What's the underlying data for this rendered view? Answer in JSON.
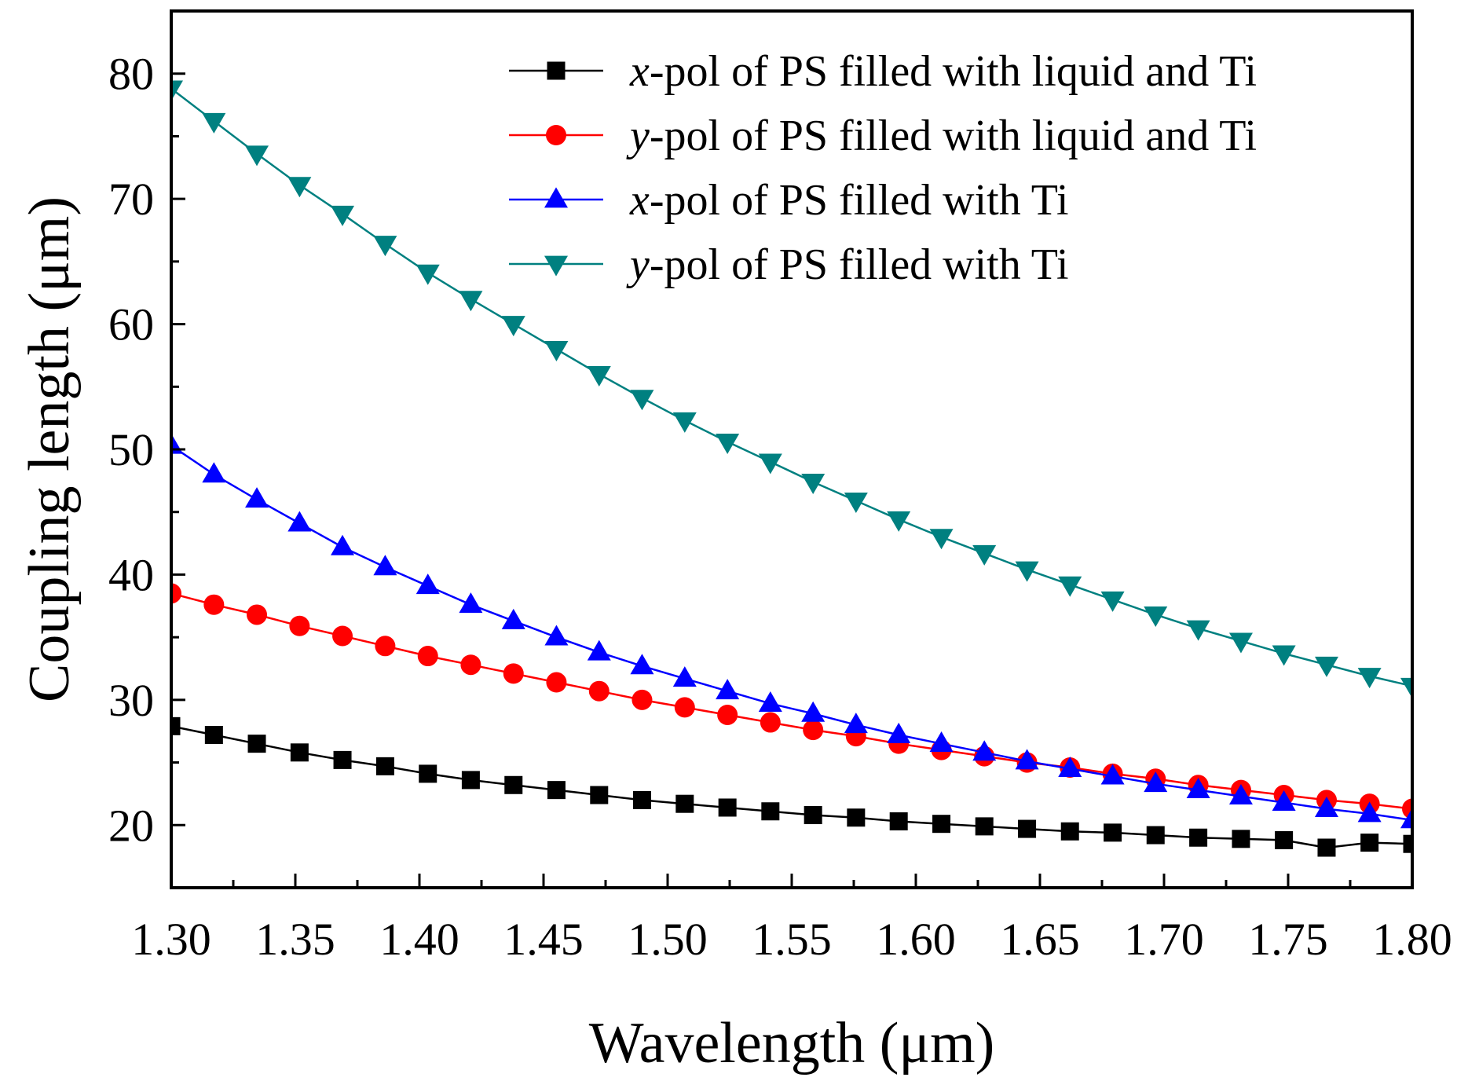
{
  "chart_data": {
    "type": "line",
    "xlabel": "Wavelength (μm)",
    "ylabel": "Coupling length (μm)",
    "xlim": [
      1.3,
      1.8
    ],
    "ylim": [
      15,
      85
    ],
    "xticks": [
      1.3,
      1.35,
      1.4,
      1.45,
      1.5,
      1.55,
      1.6,
      1.65,
      1.7,
      1.75,
      1.8
    ],
    "xtick_labels": [
      "1.30",
      "1.35",
      "1.40",
      "1.45",
      "1.50",
      "1.55",
      "1.60",
      "1.65",
      "1.70",
      "1.75",
      "1.80"
    ],
    "yticks": [
      20,
      30,
      40,
      50,
      60,
      70,
      80
    ],
    "ytick_labels": [
      "20",
      "30",
      "40",
      "50",
      "60",
      "70",
      "80"
    ],
    "legend_position": "top-right",
    "x": [
      1.3,
      1.3172,
      1.3345,
      1.3517,
      1.369,
      1.3862,
      1.4034,
      1.4207,
      1.4379,
      1.4552,
      1.4724,
      1.4897,
      1.5069,
      1.5241,
      1.5414,
      1.5586,
      1.5759,
      1.5931,
      1.6103,
      1.6276,
      1.6448,
      1.6621,
      1.6793,
      1.6966,
      1.7138,
      1.731,
      1.7483,
      1.7655,
      1.7828,
      1.8
    ],
    "series": [
      {
        "name": "x-pol of PS filled with liquid and Ti",
        "legend_var": "x",
        "legend_rest": "-pol of PS filled with liquid and Ti",
        "color": "#000000",
        "marker": "square",
        "values": [
          27.9,
          27.2,
          26.5,
          25.8,
          25.2,
          24.7,
          24.1,
          23.6,
          23.2,
          22.8,
          22.4,
          22.0,
          21.7,
          21.4,
          21.1,
          20.8,
          20.6,
          20.3,
          20.1,
          19.9,
          19.7,
          19.5,
          19.4,
          19.2,
          19.0,
          18.9,
          18.8,
          18.2,
          18.6,
          18.5
        ]
      },
      {
        "name": "y-pol of PS filled with liquid and Ti",
        "legend_var": "y",
        "legend_rest": "-pol of PS filled with liquid and Ti",
        "color": "#ff0000",
        "marker": "circle",
        "values": [
          38.5,
          37.6,
          36.8,
          35.9,
          35.1,
          34.3,
          33.5,
          32.8,
          32.1,
          31.4,
          30.7,
          30.0,
          29.4,
          28.8,
          28.2,
          27.6,
          27.1,
          26.5,
          26.0,
          25.5,
          25.0,
          24.6,
          24.1,
          23.7,
          23.2,
          22.8,
          22.4,
          22.0,
          21.7,
          21.3
        ]
      },
      {
        "name": "x-pol of PS filled with Ti",
        "legend_var": "x",
        "legend_rest": "-pol of PS filled with Ti",
        "color": "#0000ff",
        "marker": "triangle-up",
        "values": [
          50.3,
          48.0,
          46.0,
          44.1,
          42.2,
          40.6,
          39.1,
          37.6,
          36.3,
          35.0,
          33.8,
          32.7,
          31.7,
          30.7,
          29.7,
          28.9,
          28.0,
          27.2,
          26.5,
          25.8,
          25.1,
          24.5,
          23.9,
          23.3,
          22.8,
          22.3,
          21.8,
          21.3,
          20.9,
          20.4
        ]
      },
      {
        "name": "y-pol of PS filled with Ti",
        "legend_var": "y",
        "legend_rest": "-pol of PS filled with Ti",
        "color": "#008080",
        "marker": "triangle-down",
        "values": [
          78.8,
          76.2,
          73.6,
          71.1,
          68.8,
          66.4,
          64.1,
          62.0,
          60.0,
          58.0,
          56.0,
          54.1,
          52.3,
          50.6,
          49.0,
          47.4,
          45.9,
          44.4,
          43.0,
          41.7,
          40.4,
          39.2,
          38.0,
          36.8,
          35.7,
          34.7,
          33.7,
          32.8,
          31.9,
          31.1
        ]
      }
    ]
  }
}
